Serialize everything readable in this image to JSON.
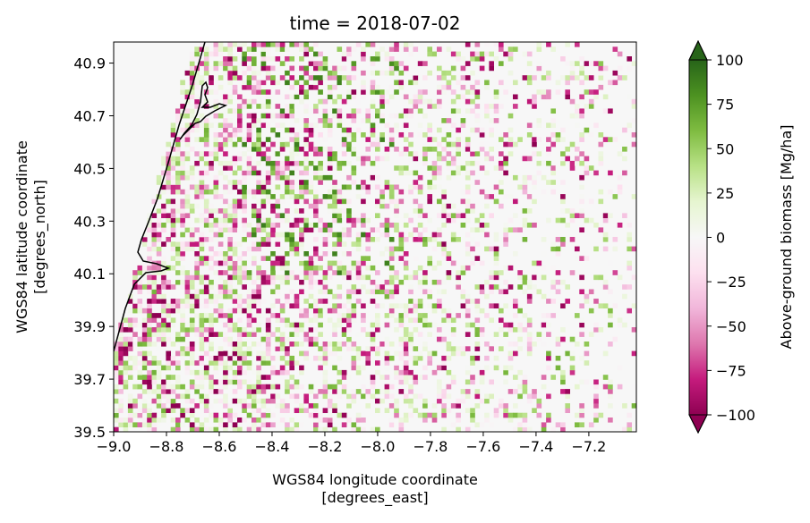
{
  "chart_data": {
    "type": "heatmap",
    "title": "time = 2018-07-02",
    "xlabel_line1": "WGS84 longitude coordinate",
    "xlabel_line2": "[degrees_east]",
    "ylabel_line1": "WGS84 latitude coordinate",
    "ylabel_line2": "[degrees_north]",
    "xlim": [
      -9.0,
      -7.02
    ],
    "ylim": [
      39.5,
      40.98
    ],
    "xticks": [
      -9.0,
      -8.8,
      -8.6,
      -8.4,
      -8.2,
      -8.0,
      -7.8,
      -7.6,
      -7.4,
      -7.2
    ],
    "xtick_labels": [
      "−9.0",
      "−8.8",
      "−8.6",
      "−8.4",
      "−8.2",
      "−8.0",
      "−7.8",
      "−7.6",
      "−7.4",
      "−7.2"
    ],
    "yticks": [
      39.5,
      39.7,
      39.9,
      40.1,
      40.3,
      40.5,
      40.7,
      40.9
    ],
    "ytick_labels": [
      "39.5",
      "39.7",
      "39.9",
      "40.1",
      "40.3",
      "40.5",
      "40.7",
      "40.9"
    ],
    "colorbar": {
      "label": "Above-ground biomass [Mg/ha]",
      "range": [
        -100,
        100
      ],
      "ticks": [
        -100,
        -75,
        -50,
        -25,
        0,
        25,
        50,
        75,
        100
      ],
      "tick_labels": [
        "−100",
        "−75",
        "−50",
        "−25",
        "0",
        "25",
        "50",
        "75",
        "100"
      ],
      "extend": "both",
      "colormap": "PiYG",
      "colors": [
        "#8e0152",
        "#c51b7d",
        "#de77ae",
        "#f1b6da",
        "#fde0ef",
        "#f7f7f7",
        "#e6f5d0",
        "#b8e186",
        "#7fbc41",
        "#4d9221",
        "#276419"
      ]
    },
    "ocean_color": "#f7f7f7",
    "coastline_color": "#000000"
  }
}
